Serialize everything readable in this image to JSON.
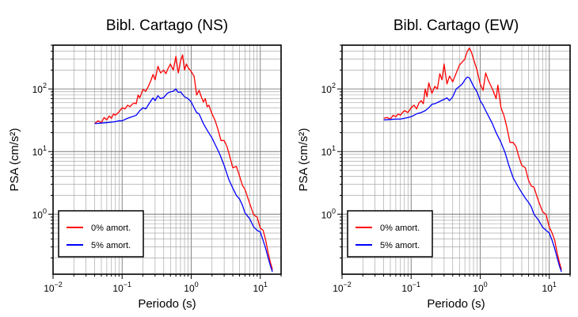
{
  "chart_data": [
    {
      "type": "line",
      "title": "Bibl. Cartago (NS)",
      "xlabel": "Periodo (s)",
      "ylabel": "PSA (cm/s²)",
      "xscale": "log",
      "yscale": "log",
      "xlim": [
        0.01,
        20
      ],
      "ylim": [
        0.11,
        500
      ],
      "xticks": [
        {
          "v": 0.01,
          "b": "10",
          "e": "−2"
        },
        {
          "v": 0.1,
          "b": "10",
          "e": "−1"
        },
        {
          "v": 1,
          "b": "10",
          "e": "0"
        },
        {
          "v": 10,
          "b": "10",
          "e": "1"
        }
      ],
      "yticks": [
        {
          "v": 1,
          "b": "10",
          "e": "0"
        },
        {
          "v": 10,
          "b": "10",
          "e": "1"
        },
        {
          "v": 100,
          "b": "10",
          "e": "2"
        }
      ],
      "grid": true,
      "legend_position": "bottom-left",
      "series": [
        {
          "name": "0% amort.",
          "color": "#ff0000",
          "x": [
            0.04,
            0.045,
            0.05,
            0.055,
            0.06,
            0.065,
            0.07,
            0.075,
            0.08,
            0.09,
            0.1,
            0.11,
            0.12,
            0.13,
            0.14,
            0.15,
            0.16,
            0.17,
            0.18,
            0.2,
            0.22,
            0.24,
            0.26,
            0.28,
            0.3,
            0.33,
            0.36,
            0.4,
            0.43,
            0.46,
            0.5,
            0.55,
            0.6,
            0.65,
            0.7,
            0.75,
            0.8,
            0.85,
            0.9,
            1.0,
            1.1,
            1.2,
            1.3,
            1.4,
            1.5,
            1.6,
            1.7,
            1.8,
            2.0,
            2.2,
            2.4,
            2.7,
            3.0,
            3.3,
            3.6,
            4.0,
            4.5,
            5.0,
            5.5,
            6.0,
            7.0,
            8.0,
            9.0,
            10,
            11,
            12,
            13,
            14,
            15
          ],
          "y": [
            28,
            31,
            29,
            35,
            32,
            37,
            34,
            40,
            38,
            43,
            50,
            48,
            55,
            52,
            57,
            60,
            58,
            80,
            72,
            98,
            92,
            110,
            135,
            170,
            140,
            230,
            180,
            200,
            175,
            210,
            250,
            200,
            330,
            180,
            280,
            350,
            200,
            250,
            220,
            190,
            160,
            80,
            95,
            75,
            62,
            70,
            52,
            55,
            40,
            32,
            24,
            15,
            15,
            12,
            8.5,
            5.5,
            5.8,
            4.1,
            2.9,
            2.5,
            1.5,
            0.98,
            0.9,
            0.6,
            0.55,
            0.38,
            0.24,
            0.17,
            0.13
          ]
        },
        {
          "name": "5% amort.",
          "color": "#0000ff",
          "x": [
            0.04,
            0.05,
            0.06,
            0.07,
            0.08,
            0.09,
            0.1,
            0.12,
            0.14,
            0.16,
            0.18,
            0.2,
            0.22,
            0.25,
            0.28,
            0.3,
            0.33,
            0.36,
            0.4,
            0.45,
            0.5,
            0.55,
            0.6,
            0.65,
            0.7,
            0.8,
            0.9,
            1.0,
            1.1,
            1.2,
            1.3,
            1.5,
            1.7,
            2.0,
            2.3,
            2.6,
            3.0,
            3.5,
            4.0,
            4.5,
            5.0,
            5.5,
            6.0,
            7.0,
            8.0,
            9.0,
            10,
            11,
            12,
            13,
            14,
            15
          ],
          "y": [
            28,
            28.5,
            29,
            29.5,
            30,
            31,
            31,
            34,
            36,
            38,
            45,
            50,
            48,
            60,
            72,
            65,
            78,
            70,
            73,
            85,
            90,
            92,
            100,
            88,
            90,
            75,
            70,
            62,
            50,
            42,
            40,
            28,
            22,
            16.5,
            12,
            9,
            6,
            3.6,
            2.6,
            2.0,
            1.75,
            1.4,
            1.05,
            0.85,
            0.63,
            0.55,
            0.52,
            0.38,
            0.28,
            0.2,
            0.15,
            0.12
          ]
        }
      ]
    },
    {
      "type": "line",
      "title": "Bibl. Cartago (EW)",
      "xlabel": "Periodo (s)",
      "ylabel": "PSA (cm/s²)",
      "xscale": "log",
      "yscale": "log",
      "xlim": [
        0.01,
        20
      ],
      "ylim": [
        0.11,
        500
      ],
      "xticks": [
        {
          "v": 0.01,
          "b": "10",
          "e": "−2"
        },
        {
          "v": 0.1,
          "b": "10",
          "e": "−1"
        },
        {
          "v": 1,
          "b": "10",
          "e": "0"
        },
        {
          "v": 10,
          "b": "10",
          "e": "1"
        }
      ],
      "yticks": [
        {
          "v": 1,
          "b": "10",
          "e": "0"
        },
        {
          "v": 10,
          "b": "10",
          "e": "1"
        },
        {
          "v": 100,
          "b": "10",
          "e": "2"
        }
      ],
      "grid": true,
      "legend_position": "bottom-left",
      "series": [
        {
          "name": "0% amort.",
          "color": "#ff0000",
          "x": [
            0.04,
            0.045,
            0.05,
            0.055,
            0.06,
            0.065,
            0.07,
            0.075,
            0.08,
            0.09,
            0.1,
            0.11,
            0.12,
            0.13,
            0.14,
            0.15,
            0.16,
            0.17,
            0.18,
            0.2,
            0.22,
            0.24,
            0.26,
            0.28,
            0.3,
            0.33,
            0.36,
            0.4,
            0.45,
            0.5,
            0.55,
            0.6,
            0.65,
            0.7,
            0.75,
            0.8,
            0.9,
            1.0,
            1.1,
            1.2,
            1.3,
            1.5,
            1.7,
            1.8,
            2.0,
            2.2,
            2.4,
            2.7,
            3.0,
            3.3,
            3.6,
            4.0,
            4.5,
            5.0,
            5.5,
            6.0,
            7.0,
            8.0,
            9.0,
            10,
            11,
            12,
            13,
            14,
            15
          ],
          "y": [
            34,
            35,
            33,
            38,
            36,
            40,
            38,
            42,
            45,
            42,
            50,
            55,
            48,
            60,
            65,
            58,
            100,
            75,
            125,
            85,
            110,
            100,
            175,
            140,
            250,
            120,
            160,
            130,
            180,
            240,
            270,
            300,
            400,
            450,
            380,
            300,
            200,
            120,
            95,
            180,
            140,
            100,
            70,
            115,
            50,
            38,
            26,
            14,
            14,
            12,
            8.5,
            6,
            5.5,
            3.5,
            2.8,
            2.7,
            1.6,
            1.1,
            0.98,
            0.62,
            0.5,
            0.38,
            0.24,
            0.17,
            0.13
          ]
        },
        {
          "name": "5% amort.",
          "color": "#0000ff",
          "x": [
            0.04,
            0.05,
            0.06,
            0.07,
            0.08,
            0.09,
            0.1,
            0.12,
            0.14,
            0.16,
            0.18,
            0.2,
            0.22,
            0.25,
            0.28,
            0.3,
            0.33,
            0.36,
            0.4,
            0.45,
            0.5,
            0.55,
            0.6,
            0.65,
            0.7,
            0.8,
            0.9,
            1.0,
            1.1,
            1.2,
            1.3,
            1.5,
            1.7,
            2.0,
            2.3,
            2.6,
            3.0,
            3.5,
            4.0,
            4.5,
            5.0,
            5.5,
            6.0,
            7.0,
            8.0,
            9.0,
            10,
            11,
            12,
            13,
            14,
            15
          ],
          "y": [
            32,
            32.5,
            33,
            33,
            34,
            35,
            36,
            40,
            42,
            45,
            50,
            57,
            58,
            62,
            66,
            68,
            72,
            65,
            75,
            100,
            110,
            120,
            140,
            155,
            150,
            110,
            90,
            65,
            55,
            45,
            38,
            28,
            20,
            14,
            9.5,
            6,
            3.8,
            2.8,
            2.2,
            1.8,
            1.55,
            1.3,
            1.0,
            0.8,
            0.62,
            0.55,
            0.5,
            0.38,
            0.28,
            0.2,
            0.15,
            0.12
          ]
        }
      ]
    }
  ]
}
